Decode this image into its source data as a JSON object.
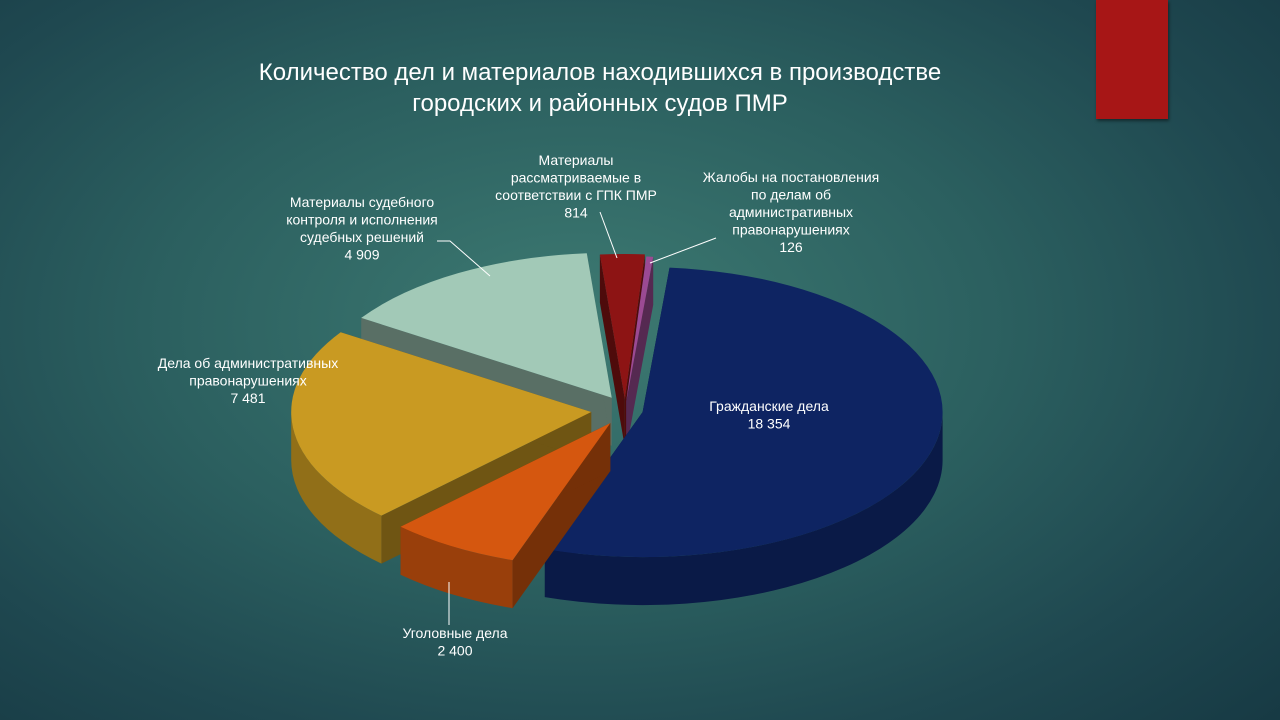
{
  "slide": {
    "accent_color": "#a71616"
  },
  "chart_data": {
    "type": "pie",
    "style": "3d-exploded",
    "title_lines": [
      "Количество дел и материалов находившихся в производстве",
      "городских и районных судов ПМР"
    ],
    "slices": [
      {
        "name": "Гражданские дела",
        "label_lines": [
          "Гражданские дела"
        ],
        "value": 18354,
        "value_label": "18 354",
        "color": "#0e2462"
      },
      {
        "name": "Уголовные дела",
        "label_lines": [
          "Уголовные дела"
        ],
        "value": 2400,
        "value_label": "2 400",
        "color": "#d5570f"
      },
      {
        "name": "Дела об административных правонарушениях",
        "label_lines": [
          "Дела об административных",
          "правонарушениях"
        ],
        "value": 7481,
        "value_label": "7 481",
        "color": "#c99a22"
      },
      {
        "name": "Материалы судебного контроля и исполнения судебных решений",
        "label_lines": [
          "Материалы судебного",
          "контроля и исполнения",
          "судебных решений"
        ],
        "value": 4909,
        "value_label": "4 909",
        "color": "#a2c9b7"
      },
      {
        "name": "Материалы рассматриваемые в соответствии с ГПК ПМР",
        "label_lines": [
          "Материалы",
          "рассматриваемые в",
          "соответствии с ГПК ПМР"
        ],
        "value": 814,
        "value_label": "814",
        "color": "#8d1414"
      },
      {
        "name": "Жалобы на постановления по делам об административных правонарушениях",
        "label_lines": [
          "Жалобы на постановления",
          "по делам об",
          "административных",
          "правонарушениях"
        ],
        "value": 126,
        "value_label": "126",
        "color": "#9b4a93"
      }
    ],
    "legend": "none",
    "labels": "outside-with-leaders"
  }
}
